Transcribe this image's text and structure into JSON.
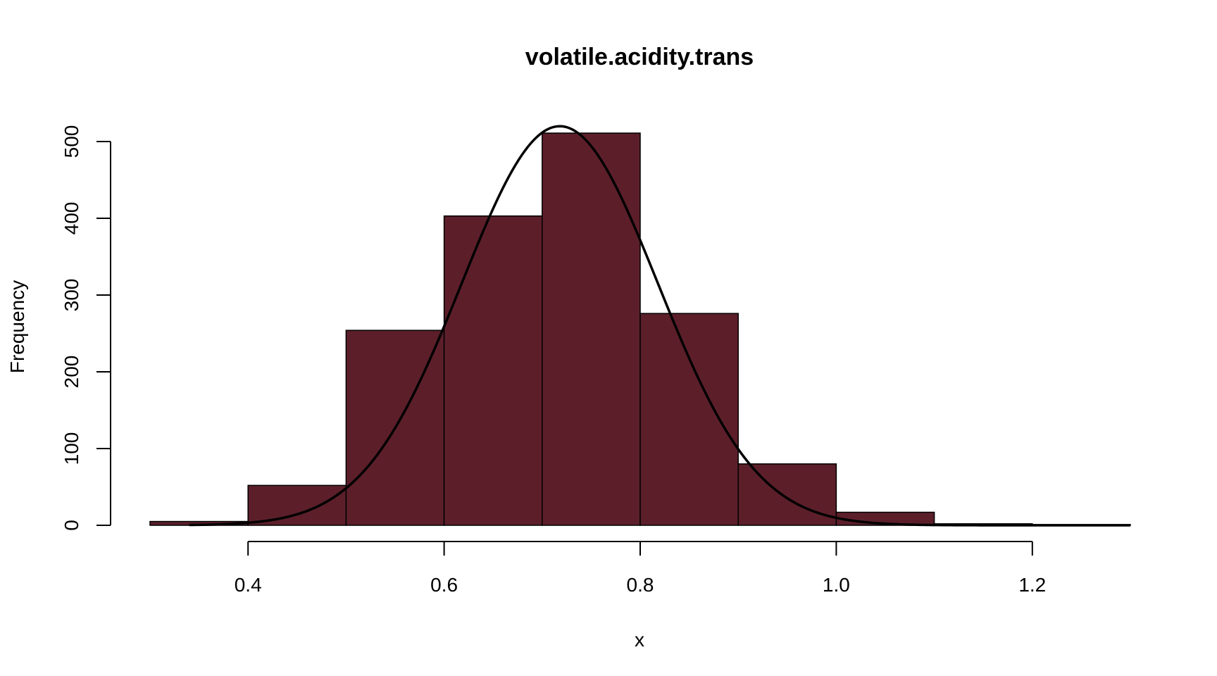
{
  "chart_data": {
    "type": "bar",
    "subtype": "histogram",
    "title": "volatile.acidity.trans",
    "xlabel": "x",
    "ylabel": "Frequency",
    "bin_edges": [
      0.3,
      0.4,
      0.5,
      0.6,
      0.7,
      0.8,
      0.9,
      1.0,
      1.1,
      1.2,
      1.3
    ],
    "values": [
      5,
      52,
      254,
      403,
      511,
      276,
      80,
      17,
      2,
      1
    ],
    "x_ticks": [
      "0.4",
      "0.6",
      "0.8",
      "1.0",
      "1.2"
    ],
    "x_tick_values": [
      0.4,
      0.6,
      0.8,
      1.0,
      1.2
    ],
    "y_ticks": [
      "0",
      "100",
      "200",
      "300",
      "400",
      "500"
    ],
    "y_tick_values": [
      0,
      100,
      200,
      300,
      400,
      500
    ],
    "xlim": [
      0.3,
      1.3
    ],
    "ylim": [
      0,
      520
    ],
    "bar_color": "#5c1f2a",
    "overlay": {
      "type": "normal-density",
      "mean": 0.718,
      "sd": 0.1,
      "peak_count": 520,
      "x_range": [
        0.34,
        1.3
      ]
    },
    "grid": false,
    "legend": "none"
  }
}
